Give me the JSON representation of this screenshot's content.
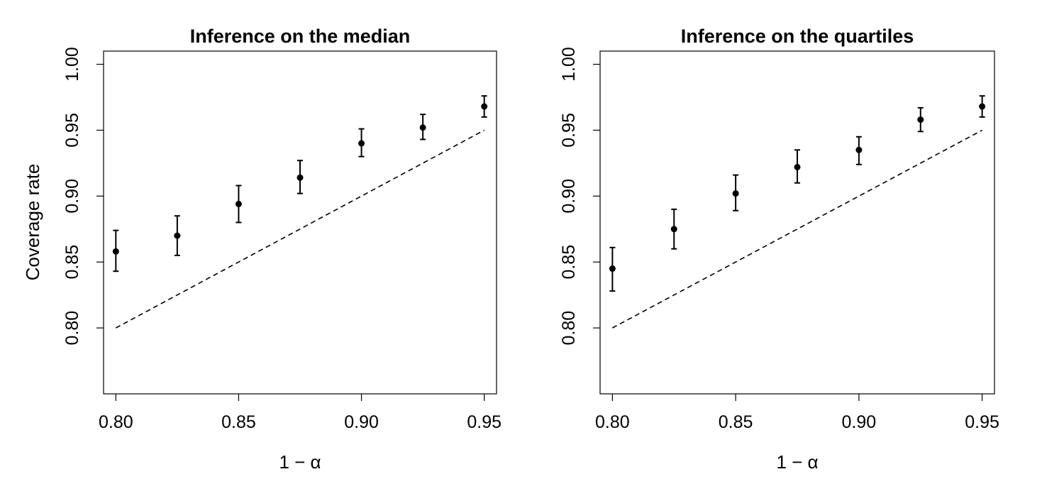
{
  "chart_data": [
    {
      "type": "scatter",
      "title": "Inference on the median",
      "xlabel": "1 − α",
      "ylabel": "Coverage rate",
      "xlim": [
        0.795,
        0.955
      ],
      "ylim": [
        0.75,
        1.01
      ],
      "xticks": [
        "0.80",
        "0.85",
        "0.90",
        "0.95"
      ],
      "yticks": [
        "0.80",
        "0.85",
        "0.90",
        "0.95",
        "1.00"
      ],
      "grid": false,
      "x": [
        0.8,
        0.825,
        0.85,
        0.875,
        0.9,
        0.925,
        0.95
      ],
      "y": [
        0.858,
        0.87,
        0.894,
        0.914,
        0.94,
        0.952,
        0.968
      ],
      "y_lower": [
        0.843,
        0.855,
        0.88,
        0.902,
        0.93,
        0.943,
        0.96
      ],
      "y_upper": [
        0.874,
        0.885,
        0.908,
        0.927,
        0.951,
        0.962,
        0.976
      ],
      "reference_line": {
        "style": "dashed",
        "x": [
          0.8,
          0.95
        ],
        "y": [
          0.8,
          0.95
        ]
      }
    },
    {
      "type": "scatter",
      "title": "Inference on the quartiles",
      "xlabel": "1 − α",
      "ylabel": "",
      "xlim": [
        0.795,
        0.955
      ],
      "ylim": [
        0.75,
        1.01
      ],
      "xticks": [
        "0.80",
        "0.85",
        "0.90",
        "0.95"
      ],
      "yticks": [
        "0.80",
        "0.85",
        "0.90",
        "0.95",
        "1.00"
      ],
      "grid": false,
      "x": [
        0.8,
        0.825,
        0.85,
        0.875,
        0.9,
        0.925,
        0.95
      ],
      "y": [
        0.845,
        0.875,
        0.902,
        0.922,
        0.935,
        0.958,
        0.968
      ],
      "y_lower": [
        0.828,
        0.86,
        0.889,
        0.91,
        0.924,
        0.949,
        0.96
      ],
      "y_upper": [
        0.861,
        0.89,
        0.916,
        0.935,
        0.945,
        0.967,
        0.976
      ],
      "reference_line": {
        "style": "dashed",
        "x": [
          0.8,
          0.95
        ],
        "y": [
          0.8,
          0.95
        ]
      }
    }
  ]
}
